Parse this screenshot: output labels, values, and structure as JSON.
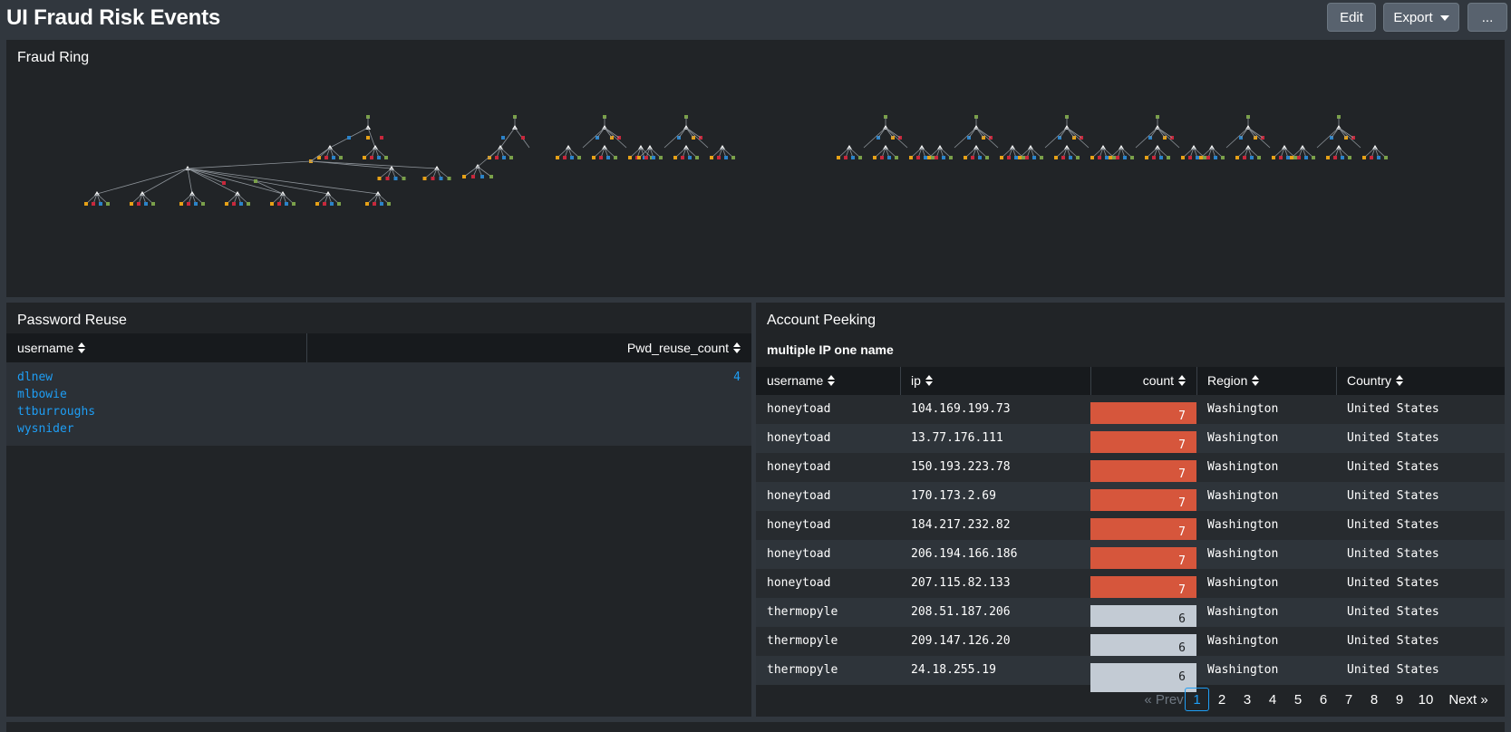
{
  "header": {
    "title": "UI Fraud Risk Events",
    "edit": "Edit",
    "export": "Export",
    "more": "..."
  },
  "fraud_ring": {
    "title": "Fraud Ring"
  },
  "password_reuse": {
    "title": "Password Reuse",
    "columns": [
      "username",
      "Pwd_reuse_count"
    ],
    "usernames": [
      "dlnew",
      "mlbowie",
      "ttburroughs",
      "wysnider"
    ],
    "count": "4"
  },
  "account_peeking": {
    "title": "Account Peeking",
    "subtitle": "multiple IP one name",
    "columns": [
      "username",
      "ip",
      "count",
      "Region",
      "Country"
    ],
    "rows": [
      [
        "honeytoad",
        "104.169.199.73",
        "7",
        "Washington",
        "United States"
      ],
      [
        "honeytoad",
        "13.77.176.111",
        "7",
        "Washington",
        "United States"
      ],
      [
        "honeytoad",
        "150.193.223.78",
        "7",
        "Washington",
        "United States"
      ],
      [
        "honeytoad",
        "170.173.2.69",
        "7",
        "Washington",
        "United States"
      ],
      [
        "honeytoad",
        "184.217.232.82",
        "7",
        "Washington",
        "United States"
      ],
      [
        "honeytoad",
        "206.194.166.186",
        "7",
        "Washington",
        "United States"
      ],
      [
        "honeytoad",
        "207.115.82.133",
        "7",
        "Washington",
        "United States"
      ],
      [
        "thermopyle",
        "208.51.187.206",
        "6",
        "Washington",
        "United States"
      ],
      [
        "thermopyle",
        "209.147.126.20",
        "6",
        "Washington",
        "United States"
      ],
      [
        "thermopyle",
        "24.18.255.19",
        "6",
        "Washington",
        "United States"
      ]
    ],
    "pagination": {
      "prev": "« Prev",
      "pages": [
        "1",
        "2",
        "3",
        "4",
        "5",
        "6",
        "7",
        "8",
        "9",
        "10"
      ],
      "current": "1",
      "next": "Next »"
    }
  },
  "colors": {
    "count_high": "#d6563c",
    "count_low": "#c3cbd4",
    "link": "#1e9ef5",
    "panel": "#212427",
    "background": "#31373e"
  }
}
